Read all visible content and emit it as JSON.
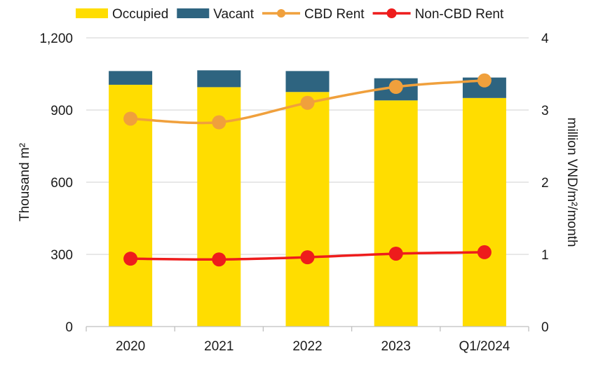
{
  "chart_data": {
    "type": "bar",
    "categories": [
      "2020",
      "2021",
      "2022",
      "2023",
      "Q1/2024"
    ],
    "series": [
      {
        "name": "Occupied",
        "kind": "stacked-bar",
        "axis": "left",
        "color": "#FFDD00",
        "values": [
          1005,
          995,
          975,
          940,
          950
        ]
      },
      {
        "name": "Vacant",
        "kind": "stacked-bar",
        "axis": "left",
        "color": "#2E6480",
        "values": [
          57,
          70,
          87,
          92,
          85
        ]
      },
      {
        "name": "CBD Rent",
        "kind": "line",
        "axis": "right",
        "color": "#F0A03C",
        "values": [
          2.88,
          2.83,
          3.1,
          3.32,
          3.41
        ]
      },
      {
        "name": "Non-CBD Rent",
        "kind": "line",
        "axis": "right",
        "color": "#EE1C1C",
        "values": [
          0.94,
          0.93,
          0.96,
          1.01,
          1.03
        ]
      }
    ],
    "y_left": {
      "label": "Thousand m²",
      "ylim": [
        0,
        1200
      ],
      "ticks": [
        "0",
        "300",
        "600",
        "900",
        "1,200"
      ],
      "tick_values": [
        0,
        300,
        600,
        900,
        1200
      ]
    },
    "y_right": {
      "label": "million VND/m²/month",
      "ylim": [
        0,
        4
      ],
      "ticks": [
        "0",
        "1",
        "2",
        "3",
        "4"
      ],
      "tick_values": [
        0,
        1,
        2,
        3,
        4
      ]
    },
    "grid": true,
    "legend_position": "top"
  }
}
